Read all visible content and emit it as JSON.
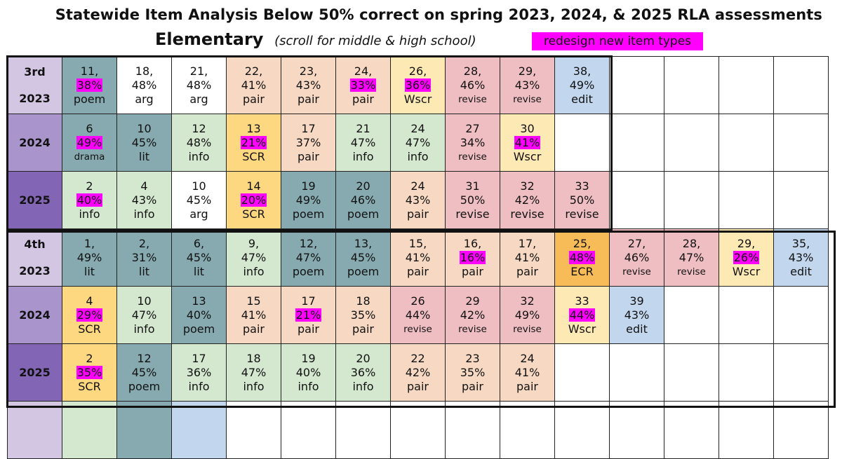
{
  "header": {
    "title": "Statewide Item Analysis Below 50% correct on spring 2023, 2024, & 2025 RLA assessments",
    "subtitle": "Elementary",
    "subtitle_note": "(scroll for middle & high school)",
    "legend_label": "redesign new item types"
  },
  "colors": {
    "highlight": "#ff00ff",
    "teal": "#86aab0",
    "light_green": "#d4e7cf",
    "peach": "#f7d9c3",
    "yellow": "#fde9b3",
    "gold": "#fdd880",
    "orange": "#f7bc58",
    "pink": "#efbec2",
    "blue": "#c2d6ee",
    "purple_light": "#d3c6e3",
    "purple_mid": "#a994cc",
    "purple_dark": "#8265b4"
  },
  "rows": [
    {
      "grade": "3rd",
      "year": "2023",
      "shade": "g1",
      "cells": [
        {
          "num": "11,",
          "pct": "38%",
          "type": "poem",
          "hl": true,
          "color": "teal",
          "small": false
        },
        {
          "num": "18,",
          "pct": "48%",
          "type": "arg",
          "hl": false,
          "color": "white",
          "small": false
        },
        {
          "num": "21,",
          "pct": "48%",
          "type": "arg",
          "hl": false,
          "color": "white",
          "small": false
        },
        {
          "num": "22,",
          "pct": "41%",
          "type": "pair",
          "hl": false,
          "color": "peach",
          "small": false
        },
        {
          "num": "23,",
          "pct": "43%",
          "type": "pair",
          "hl": false,
          "color": "peach",
          "small": false
        },
        {
          "num": "24,",
          "pct": "33%",
          "type": "pair",
          "hl": true,
          "color": "peach",
          "small": false
        },
        {
          "num": "26,",
          "pct": "36%",
          "type": "Wscr",
          "hl": true,
          "color": "yellow",
          "small": false
        },
        {
          "num": "28,",
          "pct": "46%",
          "type": "revise",
          "hl": false,
          "color": "pink",
          "small": true
        },
        {
          "num": "29,",
          "pct": "43%",
          "type": "revise",
          "hl": false,
          "color": "pink",
          "small": true
        },
        {
          "num": "38,",
          "pct": "49%",
          "type": "edit",
          "hl": false,
          "color": "blue",
          "small": false
        }
      ]
    },
    {
      "grade": "",
      "year": "2024",
      "shade": "g2",
      "cells": [
        {
          "num": "6",
          "pct": "49%",
          "type": "drama",
          "hl": true,
          "color": "teal",
          "small": true
        },
        {
          "num": "10",
          "pct": "45%",
          "type": "lit",
          "hl": false,
          "color": "teal",
          "small": false
        },
        {
          "num": "12",
          "pct": "48%",
          "type": "info",
          "hl": false,
          "color": "lgreen",
          "small": false
        },
        {
          "num": "13",
          "pct": "21%",
          "type": "SCR",
          "hl": true,
          "color": "gold",
          "small": false
        },
        {
          "num": "17",
          "pct": "37%",
          "type": "pair",
          "hl": false,
          "color": "peach",
          "small": false
        },
        {
          "num": "21",
          "pct": "47%",
          "type": "info",
          "hl": false,
          "color": "lgreen",
          "small": false
        },
        {
          "num": "24",
          "pct": "47%",
          "type": "info",
          "hl": false,
          "color": "lgreen",
          "small": false
        },
        {
          "num": "27",
          "pct": "34%",
          "type": "revise",
          "hl": false,
          "color": "pink",
          "small": true
        },
        {
          "num": "30",
          "pct": "41%",
          "type": "Wscr",
          "hl": true,
          "color": "yellow",
          "small": false
        }
      ]
    },
    {
      "grade": "",
      "year": "2025",
      "shade": "g3",
      "cells": [
        {
          "num": "2",
          "pct": "40%",
          "type": "info",
          "hl": true,
          "color": "lgreen",
          "small": false
        },
        {
          "num": "4",
          "pct": "43%",
          "type": "info",
          "hl": false,
          "color": "lgreen",
          "small": false
        },
        {
          "num": "10",
          "pct": "45%",
          "type": "arg",
          "hl": false,
          "color": "white",
          "small": false
        },
        {
          "num": "14",
          "pct": "20%",
          "type": "SCR",
          "hl": true,
          "color": "gold",
          "small": false
        },
        {
          "num": "19",
          "pct": "49%",
          "type": "poem",
          "hl": false,
          "color": "teal",
          "small": false
        },
        {
          "num": "20",
          "pct": "46%",
          "type": "poem",
          "hl": false,
          "color": "teal",
          "small": false
        },
        {
          "num": "24",
          "pct": "43%",
          "type": "pair",
          "hl": false,
          "color": "peach",
          "small": false
        },
        {
          "num": "31",
          "pct": "50%",
          "type": "revise",
          "hl": false,
          "color": "pink",
          "small": false
        },
        {
          "num": "32",
          "pct": "42%",
          "type": "revise",
          "hl": false,
          "color": "pink",
          "small": false
        },
        {
          "num": "33",
          "pct": "50%",
          "type": "revise",
          "hl": false,
          "color": "pink",
          "small": false
        }
      ]
    },
    {
      "grade": "4th",
      "year": "2023",
      "shade": "g1",
      "cells": [
        {
          "num": "1,",
          "pct": "49%",
          "type": "lit",
          "hl": false,
          "color": "teal",
          "small": false
        },
        {
          "num": "2,",
          "pct": "31%",
          "type": "lit",
          "hl": false,
          "color": "teal",
          "small": false
        },
        {
          "num": "6,",
          "pct": "45%",
          "type": "lit",
          "hl": false,
          "color": "teal",
          "small": false
        },
        {
          "num": "9,",
          "pct": "47%",
          "type": "info",
          "hl": false,
          "color": "lgreen",
          "small": false
        },
        {
          "num": "12,",
          "pct": "47%",
          "type": "poem",
          "hl": false,
          "color": "teal",
          "small": false
        },
        {
          "num": "13,",
          "pct": "45%",
          "type": "poem",
          "hl": false,
          "color": "teal",
          "small": false
        },
        {
          "num": "15,",
          "pct": "41%",
          "type": "pair",
          "hl": false,
          "color": "peach",
          "small": false
        },
        {
          "num": "16,",
          "pct": "16%",
          "type": "pair",
          "hl": true,
          "color": "peach",
          "small": false
        },
        {
          "num": "17,",
          "pct": "41%",
          "type": "pair",
          "hl": false,
          "color": "peach",
          "small": false
        },
        {
          "num": "25,",
          "pct": "48%",
          "type": "ECR",
          "hl": true,
          "color": "orange",
          "small": false
        },
        {
          "num": "27,",
          "pct": "46%",
          "type": "revise",
          "hl": false,
          "color": "pink",
          "small": true
        },
        {
          "num": "28,",
          "pct": "47%",
          "type": "revise",
          "hl": false,
          "color": "pink",
          "small": true
        },
        {
          "num": "29,",
          "pct": "26%",
          "type": "Wscr",
          "hl": true,
          "color": "yellow",
          "small": false
        },
        {
          "num": "35,",
          "pct": "43%",
          "type": "edit",
          "hl": false,
          "color": "blue",
          "small": false
        }
      ]
    },
    {
      "grade": "",
      "year": "2024",
      "shade": "g2",
      "cells": [
        {
          "num": "4",
          "pct": "29%",
          "type": "SCR",
          "hl": true,
          "color": "gold",
          "small": false
        },
        {
          "num": "10",
          "pct": "47%",
          "type": "info",
          "hl": false,
          "color": "lgreen",
          "small": false
        },
        {
          "num": "13",
          "pct": "40%",
          "type": "poem",
          "hl": false,
          "color": "teal",
          "small": false
        },
        {
          "num": "15",
          "pct": "41%",
          "type": "pair",
          "hl": false,
          "color": "peach",
          "small": false
        },
        {
          "num": "17",
          "pct": "21%",
          "type": "pair",
          "hl": true,
          "color": "peach",
          "small": false
        },
        {
          "num": "18",
          "pct": "35%",
          "type": "pair",
          "hl": false,
          "color": "peach",
          "small": false
        },
        {
          "num": "26",
          "pct": "44%",
          "type": "revise",
          "hl": false,
          "color": "pink",
          "small": true
        },
        {
          "num": "29",
          "pct": "42%",
          "type": "revise",
          "hl": false,
          "color": "pink",
          "small": true
        },
        {
          "num": "32",
          "pct": "49%",
          "type": "revise",
          "hl": false,
          "color": "pink",
          "small": true
        },
        {
          "num": "33",
          "pct": "44%",
          "type": "Wscr",
          "hl": true,
          "color": "yellow",
          "small": false
        },
        {
          "num": "39",
          "pct": "43%",
          "type": "edit",
          "hl": false,
          "color": "blue",
          "small": false
        }
      ]
    },
    {
      "grade": "",
      "year": "2025",
      "shade": "g3",
      "cells": [
        {
          "num": "2",
          "pct": "35%",
          "type": "SCR",
          "hl": true,
          "color": "gold",
          "small": false
        },
        {
          "num": "12",
          "pct": "45%",
          "type": "poem",
          "hl": false,
          "color": "teal",
          "small": false
        },
        {
          "num": "17",
          "pct": "36%",
          "type": "info",
          "hl": false,
          "color": "lgreen",
          "small": false
        },
        {
          "num": "18",
          "pct": "47%",
          "type": "info",
          "hl": false,
          "color": "lgreen",
          "small": false
        },
        {
          "num": "19",
          "pct": "40%",
          "type": "info",
          "hl": false,
          "color": "lgreen",
          "small": false
        },
        {
          "num": "20",
          "pct": "36%",
          "type": "info",
          "hl": false,
          "color": "lgreen",
          "small": false
        },
        {
          "num": "22",
          "pct": "42%",
          "type": "pair",
          "hl": false,
          "color": "peach",
          "small": false
        },
        {
          "num": "23",
          "pct": "35%",
          "type": "pair",
          "hl": false,
          "color": "peach",
          "small": false
        },
        {
          "num": "24",
          "pct": "41%",
          "type": "pair",
          "hl": false,
          "color": "peach",
          "small": false
        }
      ]
    }
  ],
  "partial_row": {
    "shade": "g1",
    "cells": [
      "lgreen",
      "teal",
      "blue"
    ]
  }
}
